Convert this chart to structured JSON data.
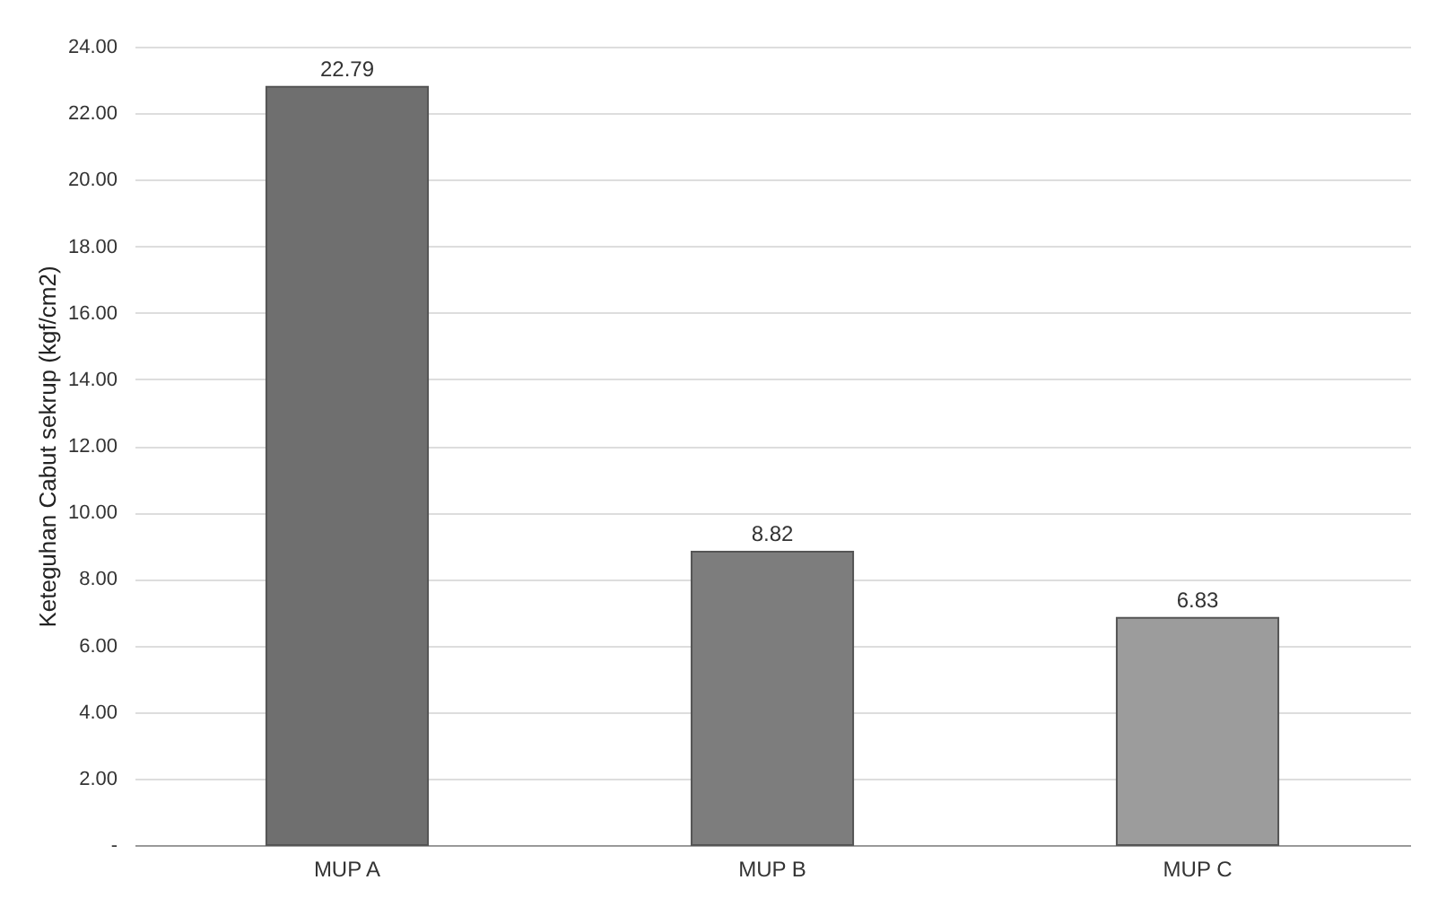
{
  "chart_data": {
    "type": "bar",
    "ylabel": "Keteguhan Cabut sekrup (kgf/cm2)",
    "categories": [
      "MUP A",
      "MUP B",
      "MUP C"
    ],
    "values": [
      22.79,
      8.82,
      6.83
    ],
    "colors": [
      "#6f6f6f",
      "#7d7d7d",
      "#9c9c9c"
    ],
    "ylim": [
      0,
      24
    ],
    "yticks": [
      {
        "value": 0,
        "label": "-"
      },
      {
        "value": 2,
        "label": "2.00"
      },
      {
        "value": 4,
        "label": "4.00"
      },
      {
        "value": 6,
        "label": "6.00"
      },
      {
        "value": 8,
        "label": "8.00"
      },
      {
        "value": 10,
        "label": "10.00"
      },
      {
        "value": 12,
        "label": "12.00"
      },
      {
        "value": 14,
        "label": "14.00"
      },
      {
        "value": 16,
        "label": "16.00"
      },
      {
        "value": 18,
        "label": "18.00"
      },
      {
        "value": 20,
        "label": "20.00"
      },
      {
        "value": 22,
        "label": "22.00"
      },
      {
        "value": 24,
        "label": "24.00"
      }
    ],
    "grid": "y",
    "data_labels": true
  }
}
